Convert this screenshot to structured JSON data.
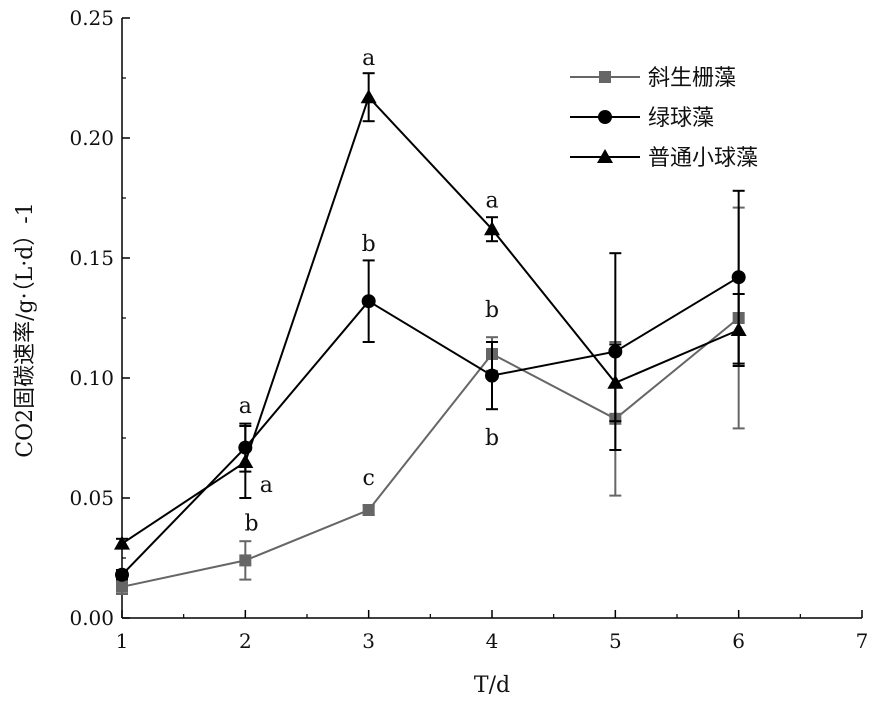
{
  "chart_data": {
    "type": "line",
    "xlabel": "T/d",
    "ylabel": "CO2固碳速率/g·（L·d）-1",
    "xlim": [
      1,
      7
    ],
    "ylim": [
      0,
      0.25
    ],
    "x_ticks": [
      "1",
      "2",
      "3",
      "4",
      "5",
      "6",
      "7"
    ],
    "y_ticks": [
      "0.00",
      "0.05",
      "0.10",
      "0.15",
      "0.20",
      "0.25"
    ],
    "grid": false,
    "legend_position": "top-right",
    "x": [
      1,
      2,
      3,
      4,
      5,
      6
    ],
    "series": [
      {
        "name": "斜生栅藻",
        "marker": "square",
        "color": "#666666",
        "values": [
          0.013,
          0.024,
          0.045,
          0.11,
          0.083,
          0.125
        ],
        "error": [
          0.003,
          0.008,
          0.002,
          0.007,
          0.032,
          0.046
        ]
      },
      {
        "name": "绿球藻",
        "marker": "circle",
        "color": "#000000",
        "values": [
          0.018,
          0.071,
          0.132,
          0.101,
          0.111,
          0.142
        ],
        "error": [
          0.002,
          0.01,
          0.017,
          0.014,
          0.041,
          0.036
        ]
      },
      {
        "name": "普通小球藻",
        "marker": "triangle",
        "color": "#000000",
        "values": [
          0.031,
          0.065,
          0.217,
          0.162,
          0.098,
          0.12
        ],
        "error": [
          0.002,
          0.015,
          0.01,
          0.005,
          0.016,
          0.015
        ]
      }
    ],
    "annotations": [
      {
        "x": 2,
        "y": 0.0855,
        "text": "a"
      },
      {
        "x": 2.17,
        "y": 0.0525,
        "text": "a"
      },
      {
        "x": 2.05,
        "y": 0.0365,
        "text": "b"
      },
      {
        "x": 3,
        "y": 0.0555,
        "text": "c"
      },
      {
        "x": 3,
        "y": 0.153,
        "text": "b"
      },
      {
        "x": 3,
        "y": 0.2305,
        "text": "a"
      },
      {
        "x": 4,
        "y": 0.171,
        "text": "a"
      },
      {
        "x": 4,
        "y": 0.1255,
        "text": "b"
      },
      {
        "x": 4,
        "y": 0.072,
        "text": "b"
      }
    ]
  }
}
